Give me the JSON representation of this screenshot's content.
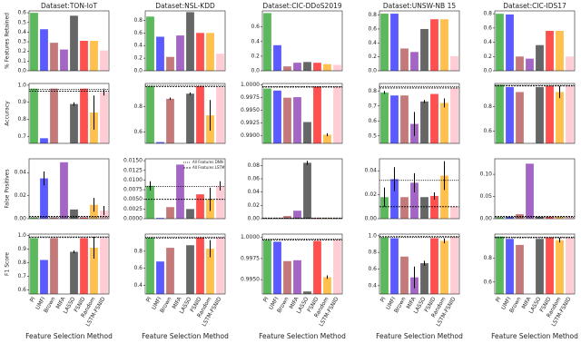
{
  "reference_names": [
    "All Features DNN",
    "All Features LSTM"
  ],
  "chart_data": [
    {
      "type": "bar",
      "title": "Dataset:TON-IoT",
      "ylabel": "% Features Retained",
      "ylim": [
        0,
        0.62
      ],
      "yticks": [
        {
          "value": 0,
          "label": "0.0"
        },
        0.1,
        0.2,
        0.3,
        0.4,
        0.5,
        0.6
      ],
      "values": [
        0.6,
        0.43,
        0.29,
        0.22,
        0.57,
        0.31,
        0.31,
        0.21
      ]
    },
    {
      "type": "bar",
      "title": "Dataset:NSL-KDD",
      "ylim": [
        0,
        0.95
      ],
      "yticks": [
        {
          "value": 0,
          "label": "0.0"
        },
        0.2,
        0.4,
        0.6,
        0.8
      ],
      "values": [
        0.86,
        0.54,
        0.22,
        0.56,
        0.93,
        0.6,
        0.6,
        0.27
      ]
    },
    {
      "type": "bar",
      "title": "Dataset:CIC-DDoS2019",
      "ylim": [
        0,
        0.82
      ],
      "yticks": [
        {
          "value": 0,
          "label": "0.0"
        },
        0.2,
        0.4,
        0.6
      ],
      "values": [
        0.79,
        0.35,
        0.06,
        0.11,
        0.12,
        0.11,
        0.09,
        0.08
      ]
    },
    {
      "type": "bar",
      "title": "Dataset:UNSW-NB 15",
      "ylim": [
        0,
        0.86
      ],
      "yticks": [
        {
          "value": 0,
          "label": "0.0"
        },
        0.2,
        0.4,
        0.6,
        0.8
      ],
      "values": [
        0.82,
        0.82,
        0.32,
        0.27,
        0.6,
        0.74,
        0.74,
        0.21
      ]
    },
    {
      "type": "bar",
      "title": "Dataset:CIC-IDS17",
      "ylim": [
        0,
        0.84
      ],
      "yticks": [
        {
          "value": 0,
          "label": "0.0"
        },
        0.2,
        0.4,
        0.6,
        0.8
      ],
      "values": [
        0.8,
        0.79,
        0.2,
        0.17,
        0.36,
        0.56,
        0.56,
        0.2
      ]
    },
    {
      "type": "bar",
      "ylabel": "Accuracy",
      "ylim": [
        0.66,
        1.01
      ],
      "yticks": [
        0.7,
        0.8,
        0.9,
        {
          "value": 1,
          "label": "1.0"
        }
      ],
      "values": [
        0.98,
        0.69,
        0.98,
        0.66,
        0.89,
        0.98,
        0.84,
        0.96
      ],
      "errors": [
        null,
        null,
        null,
        null,
        0.01,
        null,
        0.1,
        0.02
      ],
      "reference": [
        0.975,
        0.965
      ]
    },
    {
      "type": "bar",
      "ylim": [
        0.51,
        0.98
      ],
      "yticks": [
        0.6,
        0.8
      ],
      "values": [
        0.96,
        0.52,
        0.86,
        0.51,
        0.9,
        0.96,
        0.73,
        0.95
      ],
      "errors": [
        null,
        null,
        0.01,
        null,
        0.01,
        null,
        0.12,
        null
      ],
      "reference": [
        0.965,
        0.955
      ]
    },
    {
      "type": "bar",
      "ylim": [
        0.9885,
        1.0003
      ],
      "yticks": [
        {
          "value": 0.99,
          "label": "0.9900"
        },
        {
          "value": 0.9925,
          "label": "0.9925"
        },
        {
          "value": 0.995,
          "label": "0.9950"
        },
        {
          "value": 0.9975,
          "label": "0.9975"
        },
        {
          "value": 1,
          "label": "1.0000"
        }
      ],
      "values": [
        0.9993,
        0.9989,
        0.9975,
        0.9976,
        0.9927,
        0.9997,
        0.9902,
        0.9996
      ],
      "errors": [
        null,
        null,
        null,
        null,
        null,
        null,
        0.0003,
        null
      ],
      "reference": [
        0.9997,
        0.9996
      ]
    },
    {
      "type": "bar",
      "ylim": [
        0.45,
        0.85
      ],
      "yticks": [
        0.5,
        0.6,
        0.7,
        0.8
      ],
      "values": [
        0.79,
        0.77,
        0.77,
        0.58,
        0.73,
        0.78,
        0.72,
        0.82
      ],
      "errors": [
        0.01,
        null,
        null,
        0.08,
        0.01,
        null,
        0.03,
        null
      ],
      "reference": [
        0.83,
        0.82
      ]
    },
    {
      "type": "bar",
      "ylim": [
        0.5,
        0.99
      ],
      "yticks": [
        0.6,
        0.8
      ],
      "values": [
        0.98,
        0.96,
        0.92,
        0.5,
        0.96,
        0.97,
        0.92,
        0.97
      ],
      "errors": [
        null,
        null,
        null,
        null,
        null,
        null,
        0.05,
        null
      ],
      "reference": [
        0.975,
        0.97
      ]
    },
    {
      "type": "bar",
      "ylabel": "False Positives",
      "ylim": [
        0,
        0.052
      ],
      "yticks": [
        {
          "value": 0,
          "label": "0.00"
        },
        {
          "value": 0.02,
          "label": "0.02"
        },
        {
          "value": 0.04,
          "label": "0.04"
        }
      ],
      "values": [
        0.001,
        0.035,
        0.001,
        0.049,
        0.008,
        0.001,
        0.012,
        0.007
      ],
      "errors": [
        null,
        0.006,
        null,
        null,
        null,
        null,
        0.006,
        0.004
      ],
      "reference": [
        0.001,
        0.002
      ]
    },
    {
      "type": "bar",
      "legend": "upper right",
      "ylim": [
        0,
        0.0155
      ],
      "yticks": [
        {
          "value": 0,
          "label": "0.0000"
        },
        {
          "value": 0.0025,
          "label": "0.0025"
        },
        {
          "value": 0.005,
          "label": "0.0050"
        },
        {
          "value": 0.0075,
          "label": "0.0075"
        },
        {
          "value": 0.01,
          "label": "0.0100"
        },
        {
          "value": 0.0125,
          "label": "0.0125"
        },
        {
          "value": 0.015,
          "label": "0.0150"
        }
      ],
      "values": [
        0.0085,
        0.0002,
        0.003,
        0.014,
        0.0025,
        0.0063,
        0.005,
        0.0085
      ],
      "errors": [
        0.0012,
        null,
        null,
        null,
        null,
        null,
        0.003,
        0.0012
      ],
      "reference": [
        0.0083,
        0.005
      ]
    },
    {
      "type": "bar",
      "ylim": [
        0,
        0.09
      ],
      "yticks": [
        {
          "value": 0,
          "label": "0.00"
        },
        {
          "value": 0.02,
          "label": "0.02"
        },
        {
          "value": 0.04,
          "label": "0.04"
        },
        {
          "value": 0.06,
          "label": "0.06"
        },
        {
          "value": 0.08,
          "label": "0.08"
        }
      ],
      "values": [
        0.0005,
        0.0005,
        0.004,
        0.012,
        0.084,
        0.001,
        0.001,
        0.001
      ],
      "errors": [
        null,
        null,
        null,
        null,
        0.003,
        null,
        null,
        null
      ],
      "reference": [
        0.0005,
        0.001
      ]
    },
    {
      "type": "bar",
      "ylim": [
        0,
        0.05
      ],
      "yticks": [
        {
          "value": 0,
          "label": "0.00"
        },
        {
          "value": 0.02,
          "label": "0.02"
        },
        {
          "value": 0.04,
          "label": "0.04"
        }
      ],
      "values": [
        0.018,
        0.033,
        0.018,
        0.03,
        0.018,
        0.019,
        0.036,
        0.01
      ],
      "errors": [
        0.008,
        0.01,
        null,
        0.008,
        null,
        0.003,
        0.012,
        null
      ],
      "reference": [
        0.032,
        0.01
      ]
    },
    {
      "type": "bar",
      "ylim": [
        0,
        0.135
      ],
      "yticks": [
        {
          "value": 0,
          "label": "0.00"
        },
        {
          "value": 0.05,
          "label": "0.05"
        },
        {
          "value": 0.1,
          "label": "0.10"
        }
      ],
      "values": [
        0.003,
        0.004,
        0.01,
        0.124,
        0.004,
        0.004,
        0.004,
        0.004
      ],
      "errors": [
        null,
        null,
        null,
        null,
        null,
        null,
        null,
        null
      ],
      "reference": [
        0.003,
        0.005
      ]
    },
    {
      "type": "bar",
      "ylabel": "F1 Score",
      "xlabel": "Feature Selection Method",
      "categories": [
        "PI",
        "UMFI",
        "Brown",
        "MIFA",
        "LASSO",
        "FSNID",
        "Random",
        "LSTM-FSNID"
      ],
      "colors": [
        "#5cb85c",
        "#5a5aff",
        "#c47a7a",
        "#a466c4",
        "#666666",
        "#ff5050",
        "#ffc04d",
        "#ffccd5"
      ],
      "ylim": [
        0.57,
        1.01
      ],
      "yticks": [
        0.6,
        0.7,
        0.8,
        0.9,
        {
          "value": 1,
          "label": "1.0"
        }
      ],
      "values": [
        0.98,
        0.82,
        0.98,
        0.57,
        0.88,
        0.98,
        0.91,
        0.98
      ],
      "errors": [
        null,
        null,
        null,
        null,
        0.01,
        null,
        0.08,
        null
      ],
      "reference": [
        0.99,
        0.985
      ]
    },
    {
      "type": "bar",
      "xlabel": "Feature Selection Method",
      "categories": [
        "PI",
        "UMFI",
        "Brown",
        "MIFA",
        "LASSO",
        "FSNID",
        "Random",
        "LSTM-FSNID"
      ],
      "colors": [
        "#5cb85c",
        "#5a5aff",
        "#c47a7a",
        "#a466c4",
        "#666666",
        "#ff5050",
        "#ffc04d",
        "#ffccd5"
      ],
      "ylim": [
        0.3,
        1.0
      ],
      "yticks": [
        0.4,
        0.6,
        0.8
      ],
      "values": [
        0.96,
        0.68,
        0.84,
        0.3,
        0.87,
        0.96,
        0.83,
        0.96
      ],
      "errors": [
        null,
        null,
        null,
        null,
        null,
        null,
        0.1,
        null
      ],
      "reference": [
        0.965,
        0.955
      ]
    },
    {
      "type": "bar",
      "xlabel": "Feature Selection Method",
      "categories": [
        "PI",
        "UMFI",
        "Brown",
        "MIFA",
        "LASSO",
        "FSNID",
        "Random",
        "LSTM-FSNID"
      ],
      "colors": [
        "#5cb85c",
        "#5a5aff",
        "#c47a7a",
        "#a466c4",
        "#666666",
        "#ff5050",
        "#ffc04d",
        "#ffccd5"
      ],
      "ylim": [
        0.9933,
        1.0004
      ],
      "yticks": [
        {
          "value": 0.995,
          "label": "0.9950"
        },
        {
          "value": 0.9975,
          "label": "0.9975"
        },
        {
          "value": 1,
          "label": "1.0000"
        }
      ],
      "values": [
        0.9997,
        0.9995,
        0.9972,
        0.9973,
        0.9936,
        0.9996,
        0.9953,
        0.9997
      ],
      "errors": [
        null,
        null,
        null,
        null,
        null,
        null,
        0.0002,
        null
      ],
      "reference": [
        0.9998,
        0.9997
      ]
    },
    {
      "type": "bar",
      "xlabel": "Feature Selection Method",
      "categories": [
        "PI",
        "UMFI",
        "Brown",
        "MIFA",
        "LASSO",
        "FSNID",
        "Random",
        "LSTM-FSNID"
      ],
      "colors": [
        "#5cb85c",
        "#5a5aff",
        "#c47a7a",
        "#a466c4",
        "#666666",
        "#ff5050",
        "#ffc04d",
        "#ffccd5"
      ],
      "ylim": [
        0.3,
        1.02
      ],
      "yticks": [
        0.4,
        0.6,
        0.8,
        {
          "value": 1,
          "label": "1.0"
        }
      ],
      "values": [
        0.98,
        0.97,
        0.75,
        0.5,
        0.67,
        0.97,
        0.94,
        0.99
      ],
      "errors": [
        null,
        null,
        null,
        0.13,
        0.03,
        null,
        0.03,
        null
      ],
      "reference": [
        0.98,
        0.99
      ]
    },
    {
      "type": "bar",
      "xlabel": "Feature Selection Method",
      "categories": [
        "PI",
        "UMFI",
        "Brown",
        "MIFA",
        "LASSO",
        "FSNID",
        "Random",
        "LSTM-FSNID"
      ],
      "colors": [
        "#5cb85c",
        "#5a5aff",
        "#c47a7a",
        "#a466c4",
        "#666666",
        "#ff5050",
        "#ffc04d",
        "#ffccd5"
      ],
      "ylim": [
        0.5,
        1.0
      ],
      "yticks": [
        0.6,
        0.8
      ],
      "values": [
        0.98,
        0.96,
        0.91,
        0.5,
        0.96,
        0.97,
        0.95,
        0.97
      ],
      "errors": [
        null,
        null,
        null,
        null,
        null,
        null,
        0.02,
        null
      ],
      "reference": [
        0.975,
        0.97
      ]
    }
  ]
}
